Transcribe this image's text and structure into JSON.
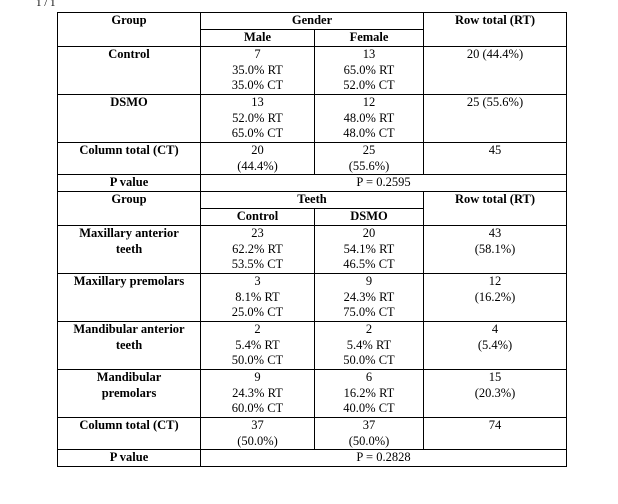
{
  "corner_fragment": "1 / 1",
  "gender_section": {
    "header": {
      "group": "Group",
      "span": "Gender",
      "row_total": "Row total (RT)"
    },
    "sub_headers": [
      "Male",
      "Female"
    ],
    "rows": [
      {
        "label": [
          "Control"
        ],
        "cells": [
          [
            "7",
            "35.0% RT",
            "35.0% CT"
          ],
          [
            "13",
            "65.0% RT",
            "52.0% CT"
          ]
        ],
        "total": [
          "20 (44.4%)"
        ]
      },
      {
        "label": [
          "DSMO"
        ],
        "cells": [
          [
            "13",
            "52.0% RT",
            "65.0% CT"
          ],
          [
            "12",
            "48.0% RT",
            "48.0% CT"
          ]
        ],
        "total": [
          "25 (55.6%)"
        ]
      },
      {
        "label": [
          "Column total (CT)"
        ],
        "cells": [
          [
            "20",
            "(44.4%)"
          ],
          [
            "25",
            "(55.6%)"
          ]
        ],
        "total": [
          "45"
        ]
      }
    ],
    "p_value": {
      "label": "P value",
      "value": "P = 0.2595"
    }
  },
  "teeth_section": {
    "header": {
      "group": "Group",
      "span": "Teeth",
      "row_total": "Row total (RT)"
    },
    "sub_headers": [
      "Control",
      "DSMO"
    ],
    "rows": [
      {
        "label": [
          "Maxillary anterior",
          "teeth"
        ],
        "cells": [
          [
            "23",
            "62.2% RT",
            "53.5% CT"
          ],
          [
            "20",
            "54.1% RT",
            "46.5% CT"
          ]
        ],
        "total": [
          "43",
          "(58.1%)"
        ]
      },
      {
        "label": [
          "Maxillary premolars"
        ],
        "cells": [
          [
            "3",
            "8.1% RT",
            "25.0% CT"
          ],
          [
            "9",
            "24.3% RT",
            "75.0% CT"
          ]
        ],
        "total": [
          "12",
          "(16.2%)"
        ]
      },
      {
        "label": [
          "Mandibular anterior",
          "teeth"
        ],
        "cells": [
          [
            "2",
            "5.4% RT",
            "50.0% CT"
          ],
          [
            "2",
            "5.4% RT",
            "50.0% CT"
          ]
        ],
        "total": [
          "4",
          "(5.4%)"
        ]
      },
      {
        "label": [
          "Mandibular",
          "premolars"
        ],
        "cells": [
          [
            "9",
            "24.3% RT",
            "60.0% CT"
          ],
          [
            "6",
            "16.2% RT",
            "40.0% CT"
          ]
        ],
        "total": [
          "15",
          "(20.3%)"
        ]
      },
      {
        "label": [
          "Column total (CT)"
        ],
        "cells": [
          [
            "37",
            "(50.0%)"
          ],
          [
            "37",
            "(50.0%)"
          ]
        ],
        "total": [
          "74"
        ]
      }
    ],
    "p_value": {
      "label": "P value",
      "value": "P = 0.2828"
    }
  }
}
